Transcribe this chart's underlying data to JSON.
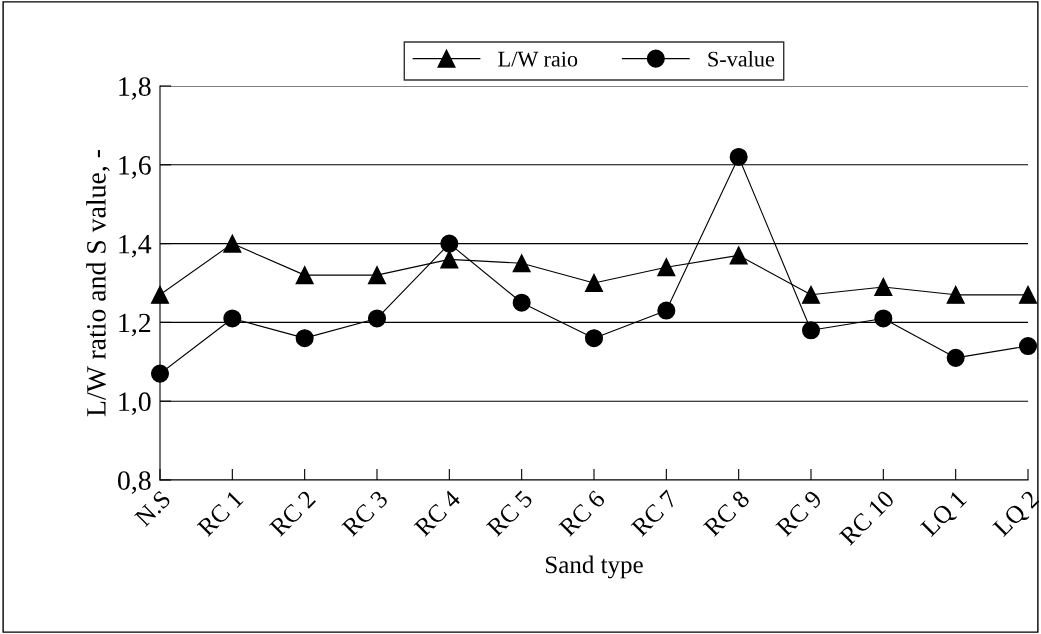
{
  "chart_data": {
    "type": "line",
    "xlabel": "Sand type",
    "ylabel": "L/W ratio and S value, -",
    "categories": [
      "N.S",
      "RC 1",
      "RC 2",
      "RC 3",
      "RC 4",
      "RC 5",
      "RC 6",
      "RC 7",
      "RC 8",
      "RC 9",
      "RC 10",
      "LQ 1",
      "LQ 2"
    ],
    "series": [
      {
        "name": "L/W raio",
        "color": "#000000",
        "marker": "triangle",
        "values": [
          1.27,
          1.4,
          1.32,
          1.32,
          1.36,
          1.35,
          1.3,
          1.34,
          1.37,
          1.27,
          1.29,
          1.27,
          1.27
        ]
      },
      {
        "name": "S-value",
        "color": "#000000",
        "marker": "circle",
        "values": [
          1.07,
          1.21,
          1.16,
          1.21,
          1.4,
          1.25,
          1.16,
          1.23,
          1.62,
          1.18,
          1.21,
          1.11,
          1.14
        ]
      }
    ],
    "ylim": [
      0.8,
      1.8
    ],
    "yticks": [
      {
        "value": 0.8,
        "label": "0,8"
      },
      {
        "value": 1.0,
        "label": "1,0"
      },
      {
        "value": 1.2,
        "label": "1,2"
      },
      {
        "value": 1.4,
        "label": "1,4"
      },
      {
        "value": 1.6,
        "label": "1,6"
      },
      {
        "value": 1.8,
        "label": "1,8"
      }
    ],
    "grid": "y",
    "legend": "top",
    "line_style": "solid"
  }
}
